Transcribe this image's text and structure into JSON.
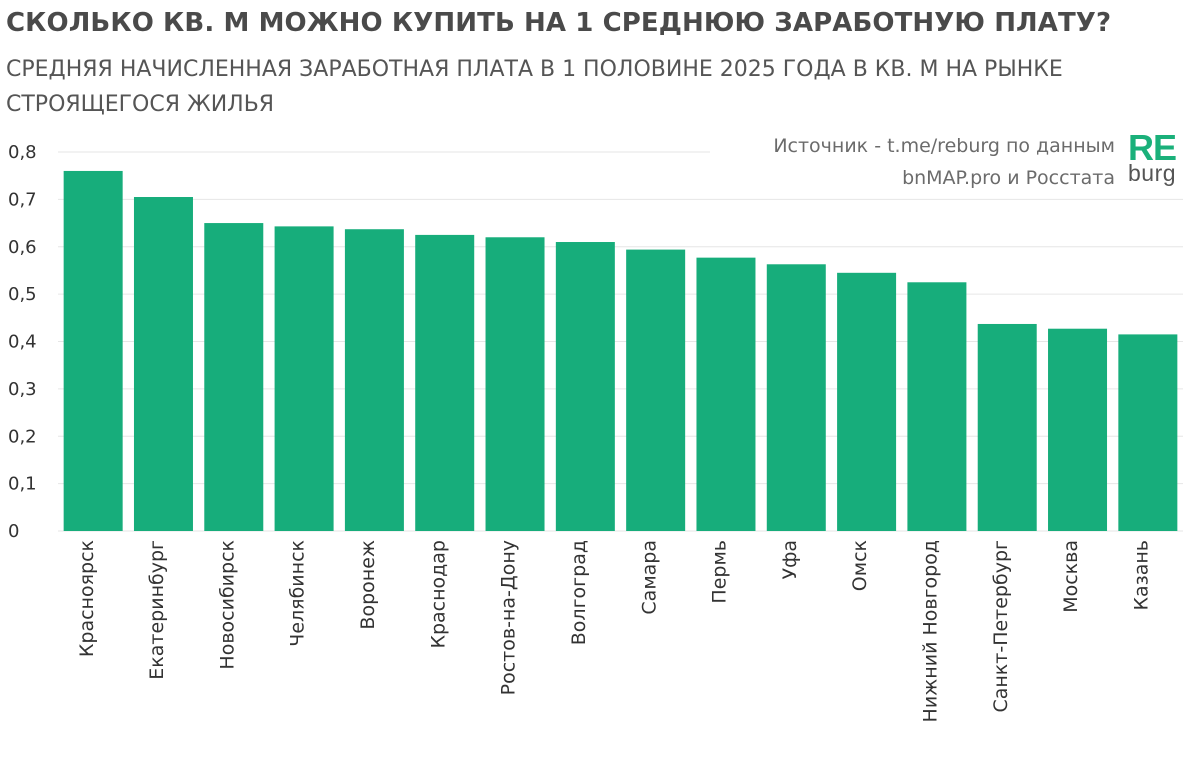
{
  "title": "СКОЛЬКО КВ. М МОЖНО КУПИТЬ НА 1 СРЕДНЮЮ ЗАРАБОТНУЮ ПЛАТУ?",
  "subtitle": "СРЕДНЯЯ НАЧИСЛЕННАЯ ЗАРАБОТНАЯ ПЛАТА В 1 ПОЛОВИНЕ 2025 ГОДА В КВ. М НА РЫНКЕ СТРОЯЩЕГОСЯ ЖИЛЬЯ",
  "source": {
    "line1": "Источник - t.me/reburg по данным",
    "line2": "bnMAP.pro и Росстата"
  },
  "logo": {
    "re": "RE",
    "burg": "burg"
  },
  "colors": {
    "bar": "#17ad7b",
    "grid": "#e6e6e6",
    "text": "#333333"
  },
  "chart_data": {
    "type": "bar",
    "categories": [
      "Красноярск",
      "Екатеринбург",
      "Новосибирск",
      "Челябинск",
      "Воронеж",
      "Краснодар",
      "Ростов-на-Дону",
      "Волгоград",
      "Самара",
      "Пермь",
      "Уфа",
      "Омск",
      "Нижний Новгород",
      "Санкт-Петербург",
      "Москва",
      "Казань"
    ],
    "values": [
      0.76,
      0.705,
      0.65,
      0.643,
      0.637,
      0.625,
      0.62,
      0.61,
      0.594,
      0.577,
      0.563,
      0.545,
      0.525,
      0.437,
      0.427,
      0.415
    ],
    "title": "СКОЛЬКО КВ. М МОЖНО КУПИТЬ НА 1 СРЕДНЮЮ ЗАРАБОТНУЮ ПЛАТУ?",
    "xlabel": "",
    "ylabel": "",
    "ylim": [
      0,
      0.8
    ],
    "yticks": [
      "0",
      "0,1",
      "0,2",
      "0,3",
      "0,4",
      "0,5",
      "0,6",
      "0,7",
      "0,8"
    ],
    "grid": true,
    "legend": "none"
  }
}
